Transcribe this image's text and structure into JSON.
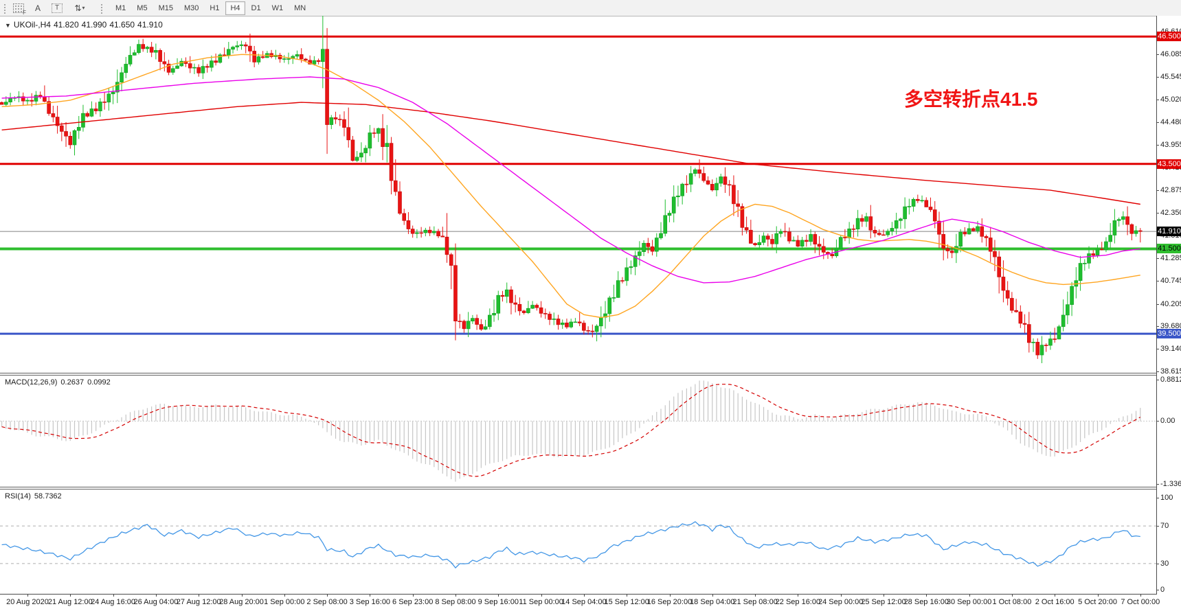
{
  "toolbar": {
    "tools": [
      {
        "name": "fibonacci-tool",
        "glyph": "F"
      },
      {
        "name": "text-tool",
        "glyph": "A"
      },
      {
        "name": "text-label-tool",
        "glyph": "T"
      },
      {
        "name": "arrows-tool",
        "glyph": "⇅",
        "caret": "▾"
      }
    ],
    "timeframes": [
      "M1",
      "M5",
      "M15",
      "M30",
      "H1",
      "H4",
      "D1",
      "W1",
      "MN"
    ],
    "active_timeframe": "H4"
  },
  "chart_header": {
    "dropdown_glyph": "▼",
    "symbol_period": "UKOil-,H4",
    "open": "41.820",
    "high": "41.990",
    "low": "41.650",
    "close": "41.910"
  },
  "annotation": {
    "text": "多空转折点41.5",
    "color": "#F01414"
  },
  "price_axis": {
    "ticks": [
      "46.610",
      "46.085",
      "45.545",
      "45.020",
      "44.480",
      "43.955",
      "43.415",
      "42.875",
      "42.350",
      "41.810",
      "41.285",
      "40.745",
      "40.205",
      "39.680",
      "39.140",
      "38.615"
    ],
    "current_price": {
      "label": "41.910",
      "bg": "#000000",
      "fg": "#FFFFFF"
    }
  },
  "hlines": [
    {
      "label": "46.500",
      "price": 46.5,
      "color": "#E00000",
      "text_color": "#FFFFFF",
      "thickness": 3
    },
    {
      "label": "43.500",
      "price": 43.5,
      "color": "#E00000",
      "text_color": "#FFFFFF",
      "thickness": 3
    },
    {
      "label": "41.500",
      "price": 41.5,
      "color": "#2FBE2F",
      "text_color": "#000000",
      "thickness": 4
    },
    {
      "label": "39.500",
      "price": 39.5,
      "color": "#3A56C8",
      "text_color": "#FFFFFF",
      "thickness": 3
    }
  ],
  "macd_panel": {
    "label": "MACD(12,26,9)",
    "value_main": "0.2637",
    "value_signal": "0.0992",
    "ticks": [
      "0.8812",
      "0.00",
      "-1.3368"
    ]
  },
  "rsi_panel": {
    "label": "RSI(14)",
    "value": "58.7362",
    "ticks": [
      "100",
      "70",
      "30",
      "0"
    ],
    "levels": [
      70,
      30
    ]
  },
  "time_axis": [
    "20 Aug 2020",
    "21 Aug 12:00",
    "24 Aug 16:00",
    "26 Aug 04:00",
    "27 Aug 12:00",
    "28 Aug 20:00",
    "1 Sep 00:00",
    "2 Sep 08:00",
    "3 Sep 16:00",
    "6 Sep 23:00",
    "8 Sep 08:00",
    "9 Sep 16:00",
    "11 Sep 00:00",
    "14 Sep 04:00",
    "15 Sep 12:00",
    "16 Sep 20:00",
    "18 Sep 04:00",
    "21 Sep 08:00",
    "22 Sep 16:00",
    "24 Sep 00:00",
    "25 Sep 12:00",
    "28 Sep 16:00",
    "30 Sep 00:00",
    "1 Oct 08:00",
    "2 Oct 16:00",
    "5 Oct 20:00",
    "7 Oct 00:00"
  ],
  "chart_data": {
    "type": "candlestick",
    "symbol": "UKOil-",
    "period": "H4",
    "bars": 267,
    "last_open": 41.82,
    "last_high": 41.99,
    "last_low": 41.65,
    "last_close": 41.91,
    "price_range_top": 46.99,
    "price_range_bottom": 38.58,
    "close_path": [
      [
        0,
        44.9
      ],
      [
        3,
        45.05
      ],
      [
        6,
        44.95
      ],
      [
        9,
        45.15
      ],
      [
        12,
        44.65
      ],
      [
        16,
        43.95
      ],
      [
        19,
        44.55
      ],
      [
        22,
        44.8
      ],
      [
        26,
        45.3
      ],
      [
        29,
        45.9
      ],
      [
        32,
        46.25
      ],
      [
        36,
        46.1
      ],
      [
        39,
        45.7
      ],
      [
        42,
        45.95
      ],
      [
        46,
        45.65
      ],
      [
        50,
        45.9
      ],
      [
        54,
        46.3
      ],
      [
        57,
        46.35
      ],
      [
        59,
        45.95
      ],
      [
        62,
        46.05
      ],
      [
        66,
        45.95
      ],
      [
        69,
        46.1
      ],
      [
        72,
        45.9
      ],
      [
        74,
        45.95
      ],
      [
        75,
        45.85
      ],
      [
        76,
        44.5
      ],
      [
        78,
        44.55
      ],
      [
        80,
        44.35
      ],
      [
        82,
        43.6
      ],
      [
        84,
        43.8
      ],
      [
        86,
        44.25
      ],
      [
        88,
        44.3
      ],
      [
        90,
        43.75
      ],
      [
        92,
        42.55
      ],
      [
        94,
        42.05
      ],
      [
        96,
        41.85
      ],
      [
        99,
        41.95
      ],
      [
        102,
        41.9
      ],
      [
        104,
        41.55
      ],
      [
        106,
        39.8
      ],
      [
        108,
        39.6
      ],
      [
        110,
        39.85
      ],
      [
        112,
        39.6
      ],
      [
        114,
        39.95
      ],
      [
        116,
        40.4
      ],
      [
        118,
        40.5
      ],
      [
        120,
        40.1
      ],
      [
        122,
        39.95
      ],
      [
        124,
        40.15
      ],
      [
        126,
        40.0
      ],
      [
        129,
        39.85
      ],
      [
        132,
        39.7
      ],
      [
        134,
        39.8
      ],
      [
        136,
        39.55
      ],
      [
        138,
        39.5
      ],
      [
        140,
        39.8
      ],
      [
        142,
        40.3
      ],
      [
        144,
        40.75
      ],
      [
        146,
        41.05
      ],
      [
        148,
        41.3
      ],
      [
        150,
        41.6
      ],
      [
        152,
        41.4
      ],
      [
        154,
        41.85
      ],
      [
        156,
        42.45
      ],
      [
        158,
        42.9
      ],
      [
        160,
        43.15
      ],
      [
        162,
        43.4
      ],
      [
        164,
        43.1
      ],
      [
        166,
        42.85
      ],
      [
        168,
        43.15
      ],
      [
        170,
        42.9
      ],
      [
        172,
        42.45
      ],
      [
        174,
        41.95
      ],
      [
        176,
        41.6
      ],
      [
        178,
        41.8
      ],
      [
        180,
        41.6
      ],
      [
        182,
        41.9
      ],
      [
        184,
        41.7
      ],
      [
        186,
        41.6
      ],
      [
        189,
        41.85
      ],
      [
        192,
        41.45
      ],
      [
        194,
        41.3
      ],
      [
        196,
        41.65
      ],
      [
        198,
        41.85
      ],
      [
        200,
        42.15
      ],
      [
        202,
        42.25
      ],
      [
        204,
        41.9
      ],
      [
        206,
        41.85
      ],
      [
        208,
        42.0
      ],
      [
        210,
        42.2
      ],
      [
        212,
        42.5
      ],
      [
        214,
        42.65
      ],
      [
        216,
        42.55
      ],
      [
        218,
        42.3
      ],
      [
        220,
        41.6
      ],
      [
        222,
        41.4
      ],
      [
        224,
        41.8
      ],
      [
        226,
        41.9
      ],
      [
        228,
        41.95
      ],
      [
        230,
        41.7
      ],
      [
        232,
        41.35
      ],
      [
        234,
        40.65
      ],
      [
        236,
        40.15
      ],
      [
        238,
        39.8
      ],
      [
        240,
        39.3
      ],
      [
        242,
        39.0
      ],
      [
        244,
        39.25
      ],
      [
        246,
        39.45
      ],
      [
        248,
        40.05
      ],
      [
        250,
        40.65
      ],
      [
        252,
        41.1
      ],
      [
        254,
        41.3
      ],
      [
        256,
        41.4
      ],
      [
        258,
        41.55
      ],
      [
        260,
        42.15
      ],
      [
        262,
        42.3
      ],
      [
        264,
        41.95
      ],
      [
        266,
        41.91
      ]
    ],
    "ma_red": [
      [
        0,
        44.3
      ],
      [
        20,
        44.5
      ],
      [
        40,
        44.7
      ],
      [
        55,
        44.85
      ],
      [
        70,
        44.95
      ],
      [
        85,
        44.9
      ],
      [
        100,
        44.72
      ],
      [
        115,
        44.5
      ],
      [
        130,
        44.25
      ],
      [
        145,
        44.0
      ],
      [
        160,
        43.75
      ],
      [
        175,
        43.5
      ],
      [
        195,
        43.3
      ],
      [
        215,
        43.12
      ],
      [
        230,
        43.0
      ],
      [
        245,
        42.88
      ],
      [
        258,
        42.68
      ],
      [
        266,
        42.55
      ]
    ],
    "ma_magenta": [
      [
        0,
        45.05
      ],
      [
        15,
        45.1
      ],
      [
        30,
        45.25
      ],
      [
        45,
        45.4
      ],
      [
        60,
        45.5
      ],
      [
        72,
        45.55
      ],
      [
        80,
        45.5
      ],
      [
        88,
        45.3
      ],
      [
        96,
        44.95
      ],
      [
        104,
        44.45
      ],
      [
        112,
        43.85
      ],
      [
        120,
        43.25
      ],
      [
        128,
        42.65
      ],
      [
        134,
        42.2
      ],
      [
        140,
        41.75
      ],
      [
        146,
        41.4
      ],
      [
        152,
        41.1
      ],
      [
        158,
        40.85
      ],
      [
        164,
        40.7
      ],
      [
        170,
        40.72
      ],
      [
        176,
        40.85
      ],
      [
        182,
        41.05
      ],
      [
        188,
        41.25
      ],
      [
        194,
        41.4
      ],
      [
        200,
        41.55
      ],
      [
        206,
        41.7
      ],
      [
        212,
        41.9
      ],
      [
        218,
        42.1
      ],
      [
        222,
        42.2
      ],
      [
        228,
        42.1
      ],
      [
        234,
        41.9
      ],
      [
        240,
        41.65
      ],
      [
        246,
        41.45
      ],
      [
        252,
        41.3
      ],
      [
        258,
        41.35
      ],
      [
        262,
        41.45
      ],
      [
        266,
        41.5
      ]
    ],
    "ma_orange": [
      [
        0,
        44.85
      ],
      [
        8,
        44.9
      ],
      [
        16,
        45.0
      ],
      [
        24,
        45.25
      ],
      [
        32,
        45.55
      ],
      [
        40,
        45.85
      ],
      [
        48,
        46.0
      ],
      [
        56,
        46.08
      ],
      [
        64,
        46.05
      ],
      [
        70,
        45.95
      ],
      [
        76,
        45.72
      ],
      [
        82,
        45.4
      ],
      [
        88,
        45.0
      ],
      [
        94,
        44.5
      ],
      [
        100,
        43.9
      ],
      [
        106,
        43.2
      ],
      [
        112,
        42.5
      ],
      [
        118,
        41.85
      ],
      [
        124,
        41.2
      ],
      [
        128,
        40.7
      ],
      [
        132,
        40.2
      ],
      [
        136,
        39.95
      ],
      [
        140,
        39.88
      ],
      [
        144,
        39.95
      ],
      [
        148,
        40.15
      ],
      [
        152,
        40.5
      ],
      [
        156,
        40.9
      ],
      [
        160,
        41.35
      ],
      [
        164,
        41.8
      ],
      [
        168,
        42.15
      ],
      [
        172,
        42.4
      ],
      [
        176,
        42.55
      ],
      [
        180,
        42.5
      ],
      [
        184,
        42.35
      ],
      [
        188,
        42.15
      ],
      [
        192,
        41.95
      ],
      [
        196,
        41.82
      ],
      [
        200,
        41.72
      ],
      [
        204,
        41.68
      ],
      [
        208,
        41.7
      ],
      [
        212,
        41.72
      ],
      [
        216,
        41.68
      ],
      [
        220,
        41.6
      ],
      [
        224,
        41.48
      ],
      [
        228,
        41.32
      ],
      [
        232,
        41.12
      ],
      [
        236,
        40.95
      ],
      [
        240,
        40.8
      ],
      [
        244,
        40.7
      ],
      [
        248,
        40.66
      ],
      [
        252,
        40.68
      ],
      [
        256,
        40.72
      ],
      [
        260,
        40.78
      ],
      [
        266,
        40.88
      ]
    ],
    "macd_range": [
      -1.3368,
      0.8812
    ],
    "macd_path": [
      [
        0,
        -0.12
      ],
      [
        8,
        -0.3
      ],
      [
        16,
        -0.42
      ],
      [
        22,
        -0.2
      ],
      [
        28,
        0.1
      ],
      [
        34,
        0.3
      ],
      [
        38,
        0.36
      ],
      [
        44,
        0.3
      ],
      [
        50,
        0.33
      ],
      [
        56,
        0.3
      ],
      [
        62,
        0.18
      ],
      [
        68,
        0.12
      ],
      [
        72,
        0.05
      ],
      [
        76,
        -0.25
      ],
      [
        80,
        -0.45
      ],
      [
        84,
        -0.5
      ],
      [
        88,
        -0.42
      ],
      [
        92,
        -0.6
      ],
      [
        96,
        -0.8
      ],
      [
        100,
        -0.95
      ],
      [
        104,
        -1.15
      ],
      [
        106,
        -1.3
      ],
      [
        108,
        -1.2
      ],
      [
        112,
        -1.0
      ],
      [
        116,
        -0.85
      ],
      [
        120,
        -0.75
      ],
      [
        124,
        -0.7
      ],
      [
        128,
        -0.73
      ],
      [
        132,
        -0.76
      ],
      [
        136,
        -0.72
      ],
      [
        140,
        -0.62
      ],
      [
        144,
        -0.45
      ],
      [
        148,
        -0.2
      ],
      [
        152,
        0.1
      ],
      [
        156,
        0.45
      ],
      [
        160,
        0.7
      ],
      [
        163,
        0.86
      ],
      [
        166,
        0.8
      ],
      [
        170,
        0.68
      ],
      [
        174,
        0.48
      ],
      [
        178,
        0.28
      ],
      [
        182,
        0.12
      ],
      [
        186,
        0.06
      ],
      [
        190,
        0.12
      ],
      [
        194,
        0.08
      ],
      [
        198,
        0.14
      ],
      [
        202,
        0.22
      ],
      [
        206,
        0.28
      ],
      [
        210,
        0.34
      ],
      [
        214,
        0.4
      ],
      [
        218,
        0.34
      ],
      [
        222,
        0.2
      ],
      [
        226,
        0.16
      ],
      [
        230,
        0.1
      ],
      [
        234,
        -0.15
      ],
      [
        238,
        -0.45
      ],
      [
        242,
        -0.68
      ],
      [
        246,
        -0.75
      ],
      [
        250,
        -0.55
      ],
      [
        254,
        -0.32
      ],
      [
        258,
        -0.12
      ],
      [
        262,
        0.1
      ],
      [
        266,
        0.2637
      ]
    ],
    "rsi_path": [
      [
        0,
        50
      ],
      [
        4,
        47
      ],
      [
        8,
        44
      ],
      [
        12,
        40
      ],
      [
        16,
        35
      ],
      [
        20,
        45
      ],
      [
        24,
        54
      ],
      [
        28,
        62
      ],
      [
        32,
        68
      ],
      [
        34,
        71
      ],
      [
        38,
        60
      ],
      [
        42,
        65
      ],
      [
        46,
        58
      ],
      [
        50,
        63
      ],
      [
        54,
        68
      ],
      [
        58,
        59
      ],
      [
        62,
        62
      ],
      [
        66,
        60
      ],
      [
        70,
        63
      ],
      [
        74,
        58
      ],
      [
        76,
        45
      ],
      [
        80,
        43
      ],
      [
        82,
        37
      ],
      [
        86,
        47
      ],
      [
        88,
        49
      ],
      [
        92,
        39
      ],
      [
        96,
        37
      ],
      [
        100,
        39
      ],
      [
        104,
        34
      ],
      [
        106,
        27
      ],
      [
        108,
        30
      ],
      [
        110,
        32
      ],
      [
        114,
        37
      ],
      [
        116,
        43
      ],
      [
        118,
        46
      ],
      [
        120,
        40
      ],
      [
        124,
        42
      ],
      [
        126,
        41
      ],
      [
        130,
        38
      ],
      [
        134,
        36
      ],
      [
        136,
        33
      ],
      [
        140,
        39
      ],
      [
        142,
        47
      ],
      [
        146,
        54
      ],
      [
        150,
        61
      ],
      [
        154,
        65
      ],
      [
        158,
        70
      ],
      [
        162,
        73
      ],
      [
        164,
        71
      ],
      [
        166,
        66
      ],
      [
        168,
        71
      ],
      [
        170,
        68
      ],
      [
        172,
        59
      ],
      [
        176,
        47
      ],
      [
        180,
        51
      ],
      [
        184,
        50
      ],
      [
        188,
        53
      ],
      [
        192,
        45
      ],
      [
        196,
        49
      ],
      [
        200,
        57
      ],
      [
        204,
        53
      ],
      [
        208,
        56
      ],
      [
        212,
        61
      ],
      [
        216,
        60
      ],
      [
        220,
        45
      ],
      [
        224,
        51
      ],
      [
        226,
        53
      ],
      [
        230,
        50
      ],
      [
        234,
        41
      ],
      [
        238,
        35
      ],
      [
        242,
        28
      ],
      [
        244,
        31
      ],
      [
        246,
        34
      ],
      [
        248,
        41
      ],
      [
        250,
        49
      ],
      [
        252,
        53
      ],
      [
        254,
        55
      ],
      [
        256,
        56
      ],
      [
        258,
        57
      ],
      [
        260,
        62
      ],
      [
        262,
        66
      ],
      [
        264,
        60
      ],
      [
        266,
        58.74
      ]
    ],
    "colors": {
      "up": "#1FBE2F",
      "up_border": "#0E9E1E",
      "down": "#E81414",
      "down_border": "#C80808",
      "ma_red": "#E00000",
      "ma_magenta": "#EA00EA",
      "ma_orange": "#FFA520",
      "macd_hist": "#C6C6C6",
      "macd_signal": "#D40000",
      "rsi": "#4296E6",
      "bid_line": "#808080",
      "level_dash": "#ADADAD"
    }
  }
}
